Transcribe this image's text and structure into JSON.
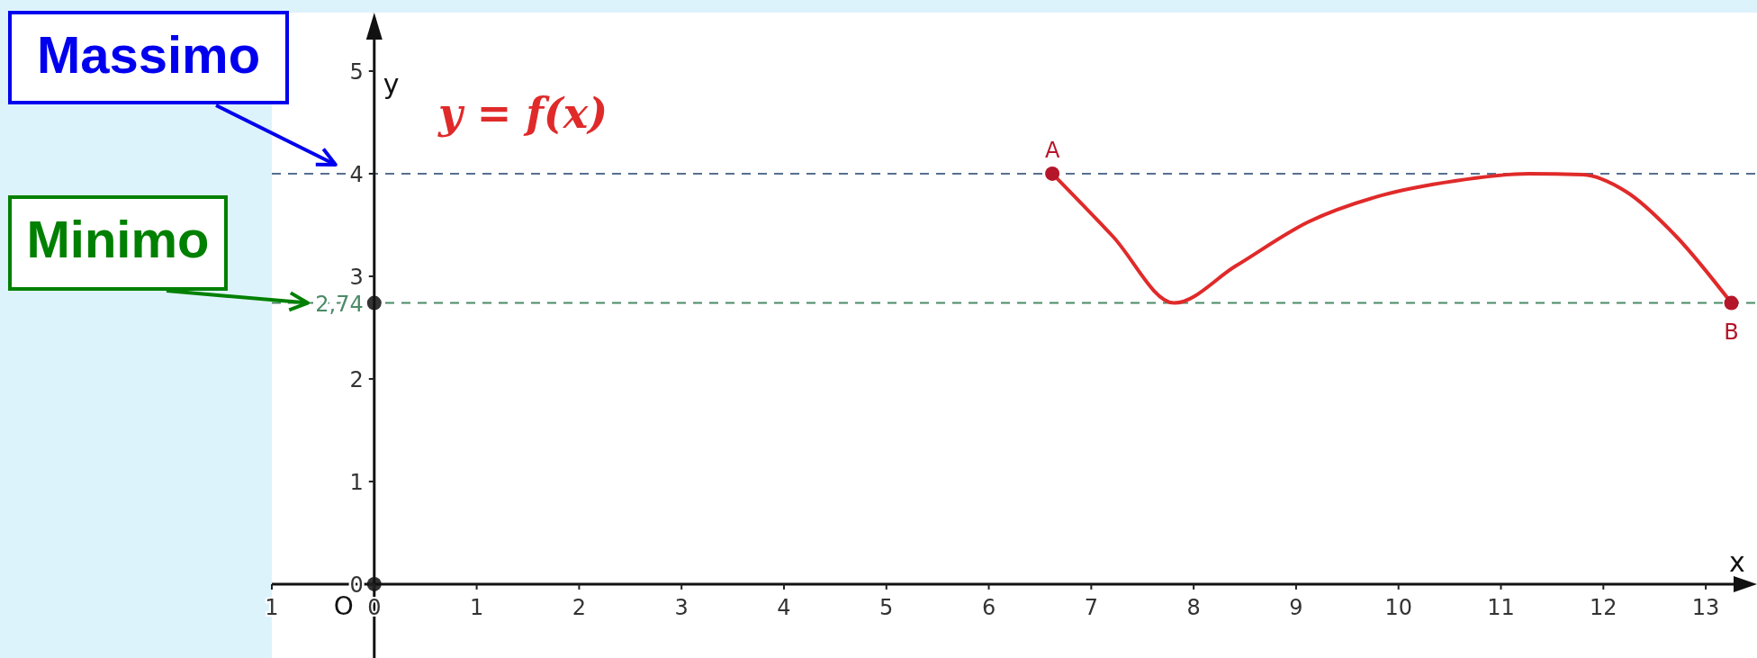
{
  "chart_data": {
    "type": "line",
    "xlabel": "x",
    "ylabel": "y",
    "xlim": [
      -1,
      13.5
    ],
    "ylim": [
      -0.72,
      5.57
    ],
    "xticks": [
      {
        "value": -1,
        "label": "1"
      },
      0,
      1,
      2,
      3,
      4,
      5,
      6,
      7,
      8,
      9,
      10,
      11,
      12,
      13
    ],
    "yticks": [
      0,
      1,
      2,
      {
        "value": 2.74,
        "label": "2,74"
      },
      3,
      4,
      5
    ],
    "marker": "none",
    "line_style": "solid",
    "series": [
      {
        "name": "y = f(x)",
        "color": "#e02a2a",
        "x": [
          6.62,
          7.21,
          7.81,
          8.41,
          9.12,
          9.84,
          10.55,
          11.27,
          11.8,
          12.23,
          12.71,
          13.25
        ],
        "values": [
          4,
          3.39,
          2.74,
          3.1,
          3.53,
          3.79,
          3.93,
          4.0,
          3.99,
          3.82,
          3.39,
          2.74
        ]
      },
      {
        "type": "scatter",
        "marker": "circle",
        "color": "#b5162a",
        "x": [
          6.62,
          13.25
        ],
        "values": [
          4,
          2.74
        ]
      },
      {
        "type": "scatter",
        "marker": "circle",
        "color": "#333333",
        "x": [
          0,
          0
        ],
        "values": [
          0,
          2.74
        ]
      }
    ],
    "ref_lines": [
      {
        "axis": "y",
        "value": 4,
        "color": "#56708f",
        "line_style": "dashed"
      },
      {
        "axis": "y",
        "value": 2.74,
        "color": "#4b8a68",
        "line_style": "dashed"
      }
    ],
    "annotations": [
      {
        "text": "Massimo",
        "x": 0,
        "y": 4
      },
      {
        "text": "Minimo",
        "x": -0.65,
        "y": 2.74
      },
      {
        "text": "A",
        "x": 6.62,
        "y": 4
      },
      {
        "text": "B",
        "x": 13.25,
        "y": 2.74
      },
      {
        "text": "O",
        "x": 0,
        "y": 0
      }
    ]
  }
}
